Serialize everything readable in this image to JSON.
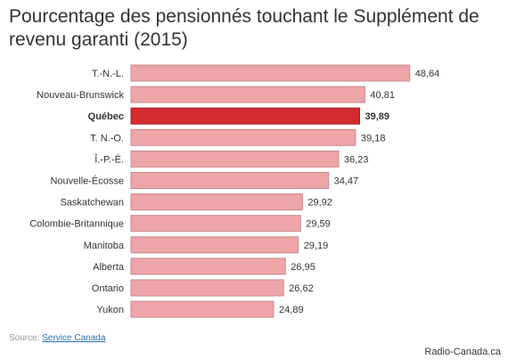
{
  "title": "Pourcentage des pensionnés touchant le Supplément de revenu garanti (2015)",
  "source_label": "Source:",
  "source_link": "Service Canada",
  "credit": "Radio-Canada.ca",
  "colors": {
    "bar": "#eda5a8",
    "bar_stroke": "#c98a8d",
    "highlight": "#d42b2f",
    "highlight_stroke": "#a61e22"
  },
  "chart_data": {
    "type": "bar",
    "orientation": "horizontal",
    "title": "Pourcentage des pensionnés touchant le Supplément de revenu garanti (2015)",
    "categories": [
      "T.-N.-L.",
      "Nouveau-Brunswick",
      "Québec",
      "T. N.-O.",
      "Î.-P.-É.",
      "Nouvelle-Écosse",
      "Saskatchewan",
      "Colombie-Britannique",
      "Manitoba",
      "Alberta",
      "Ontario",
      "Yukon"
    ],
    "values": [
      48.64,
      40.81,
      39.89,
      39.18,
      36.23,
      34.47,
      29.92,
      29.59,
      29.19,
      26.95,
      26.62,
      24.89
    ],
    "value_labels": [
      "48,64",
      "40,81",
      "39,89",
      "39,18",
      "36,23",
      "34,47",
      "29,92",
      "29,59",
      "29,19",
      "26,95",
      "26,62",
      "24,89"
    ],
    "highlighted": "Québec",
    "xlabel": "",
    "ylabel": "",
    "grid": false
  }
}
